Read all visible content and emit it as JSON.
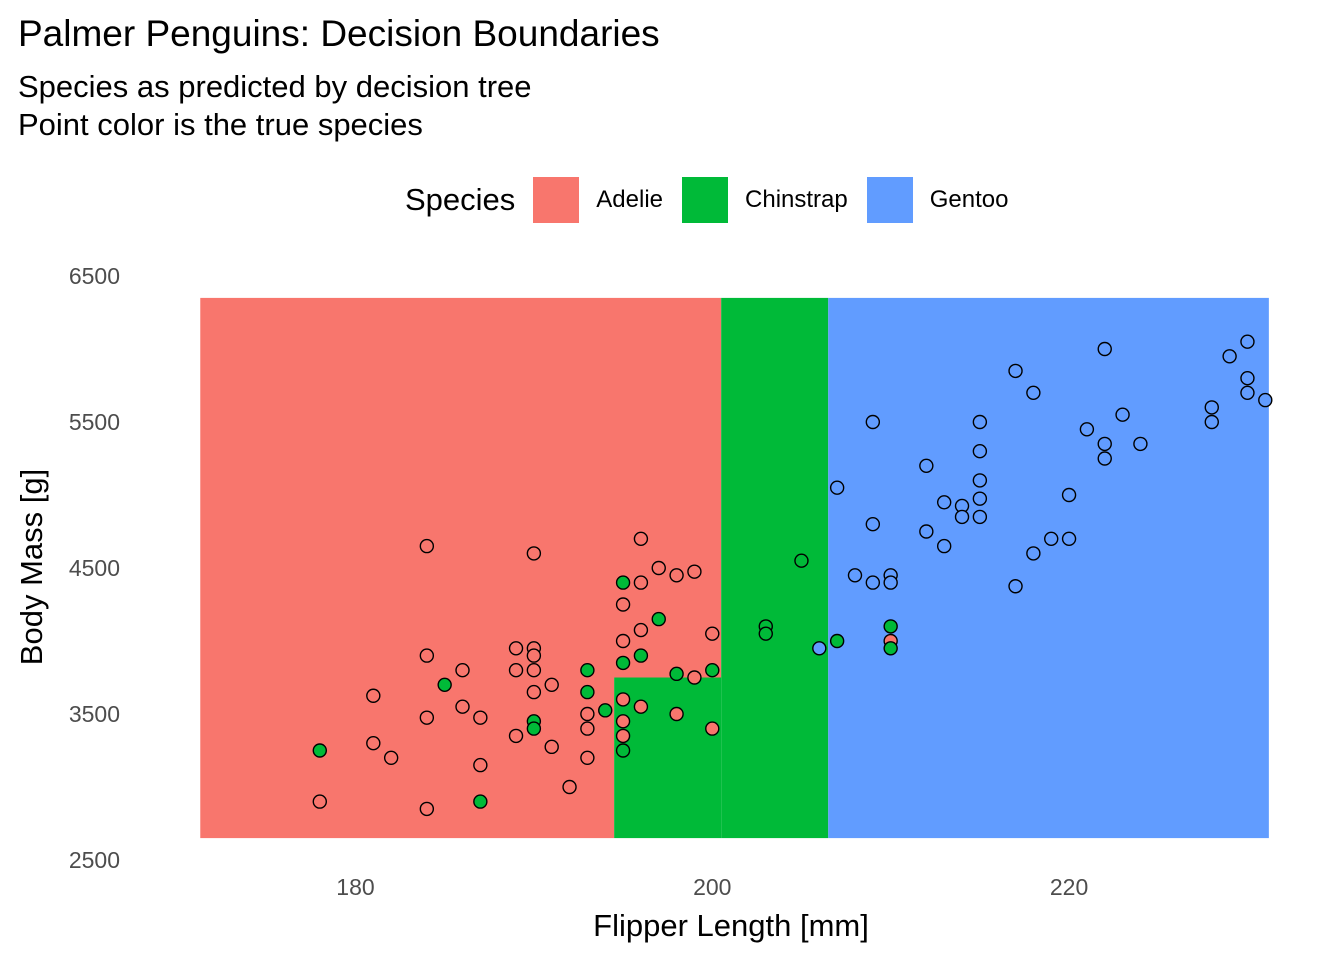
{
  "chart_data": {
    "type": "scatter",
    "title": "Palmer Penguins: Decision Boundaries",
    "subtitle": [
      "Species as predicted by decision tree",
      "Point color is the true species"
    ],
    "xlabel": "Flipper Length [mm]",
    "ylabel": "Body Mass [g]",
    "xlim": [
      170.5,
      231.6
    ],
    "ylim": [
      2500,
      6500
    ],
    "xticks": [
      180,
      200,
      220
    ],
    "yticks": [
      2500,
      3500,
      4500,
      5500,
      6500
    ],
    "grid": false,
    "legend": {
      "title": "Species",
      "position": "top",
      "entries": [
        {
          "label": "Adelie",
          "color": "#F8766D"
        },
        {
          "label": "Chinstrap",
          "color": "#00BA38"
        },
        {
          "label": "Gentoo",
          "color": "#619CFF"
        }
      ]
    },
    "colors": {
      "Adelie": "#F8766D",
      "Chinstrap": "#00BA38",
      "Gentoo": "#619CFF"
    },
    "boundary_region": {
      "x": [
        171.3,
        231.2
      ],
      "y": [
        2650,
        6350
      ]
    },
    "regions": [
      {
        "species": "Adelie",
        "x": [
          171.3,
          200.5
        ],
        "y": [
          3750,
          6350
        ]
      },
      {
        "species": "Adelie",
        "x": [
          171.3,
          194.5
        ],
        "y": [
          2650,
          3750
        ]
      },
      {
        "species": "Chinstrap",
        "x": [
          200.5,
          206.5
        ],
        "y": [
          2650,
          6350
        ]
      },
      {
        "species": "Chinstrap",
        "x": [
          194.5,
          200.5
        ],
        "y": [
          2650,
          3750
        ]
      },
      {
        "species": "Gentoo",
        "x": [
          206.5,
          231.2
        ],
        "y": [
          2650,
          6350
        ]
      }
    ],
    "series": [
      {
        "name": "Adelie",
        "points": [
          [
            178,
            2900
          ],
          [
            181,
            3625
          ],
          [
            181,
            3300
          ],
          [
            182,
            3200
          ],
          [
            184,
            4650
          ],
          [
            184,
            3900
          ],
          [
            184,
            3475
          ],
          [
            184,
            2850
          ],
          [
            186,
            3800
          ],
          [
            186,
            3550
          ],
          [
            187,
            3475
          ],
          [
            187,
            3150
          ],
          [
            189,
            3950
          ],
          [
            189,
            3800
          ],
          [
            189,
            3350
          ],
          [
            190,
            4600
          ],
          [
            190,
            3950
          ],
          [
            190,
            3900
          ],
          [
            190,
            3800
          ],
          [
            190,
            3650
          ],
          [
            191,
            3700
          ],
          [
            191,
            3275
          ],
          [
            192,
            3000
          ],
          [
            193,
            3500
          ],
          [
            193,
            3400
          ],
          [
            193,
            3200
          ],
          [
            195,
            4250
          ],
          [
            195,
            4000
          ],
          [
            195,
            3600
          ],
          [
            195,
            3450
          ],
          [
            195,
            3350
          ],
          [
            196,
            4700
          ],
          [
            196,
            4400
          ],
          [
            196,
            4075
          ],
          [
            196,
            3550
          ],
          [
            197,
            4500
          ],
          [
            198,
            4450
          ],
          [
            198,
            3500
          ],
          [
            199,
            4475
          ],
          [
            199,
            3750
          ],
          [
            200,
            4050
          ],
          [
            200,
            3400
          ],
          [
            210,
            4000
          ]
        ]
      },
      {
        "name": "Chinstrap",
        "points": [
          [
            178,
            3250
          ],
          [
            185,
            3700
          ],
          [
            187,
            2900
          ],
          [
            190,
            3450
          ],
          [
            190,
            3400
          ],
          [
            193,
            3800
          ],
          [
            193,
            3650
          ],
          [
            194,
            3525
          ],
          [
            195,
            4400
          ],
          [
            195,
            3850
          ],
          [
            195,
            3250
          ],
          [
            196,
            3900
          ],
          [
            197,
            4150
          ],
          [
            198,
            3775
          ],
          [
            200,
            3800
          ],
          [
            205,
            4550
          ],
          [
            203,
            4100
          ],
          [
            203,
            4050
          ],
          [
            207,
            4000
          ],
          [
            210,
            4100
          ],
          [
            210,
            3950
          ]
        ]
      },
      {
        "name": "Gentoo",
        "points": [
          [
            206,
            3950
          ],
          [
            207,
            5050
          ],
          [
            208,
            4450
          ],
          [
            209,
            4400
          ],
          [
            209,
            4800
          ],
          [
            209,
            5500
          ],
          [
            210,
            4450
          ],
          [
            210,
            4400
          ],
          [
            212,
            4750
          ],
          [
            212,
            5200
          ],
          [
            213,
            4950
          ],
          [
            213,
            4650
          ],
          [
            214,
            4925
          ],
          [
            214,
            4850
          ],
          [
            215,
            5500
          ],
          [
            215,
            5300
          ],
          [
            215,
            5100
          ],
          [
            215,
            4975
          ],
          [
            215,
            4850
          ],
          [
            217,
            5850
          ],
          [
            217,
            4375
          ],
          [
            218,
            5700
          ],
          [
            218,
            4600
          ],
          [
            219,
            4700
          ],
          [
            220,
            5000
          ],
          [
            220,
            4700
          ],
          [
            221,
            5450
          ],
          [
            222,
            6000
          ],
          [
            222,
            5350
          ],
          [
            222,
            5250
          ],
          [
            223,
            5550
          ],
          [
            224,
            5350
          ],
          [
            228,
            5600
          ],
          [
            228,
            5500
          ],
          [
            229,
            5950
          ],
          [
            230,
            6050
          ],
          [
            230,
            5800
          ],
          [
            230,
            5700
          ],
          [
            231,
            5650
          ]
        ]
      }
    ]
  }
}
